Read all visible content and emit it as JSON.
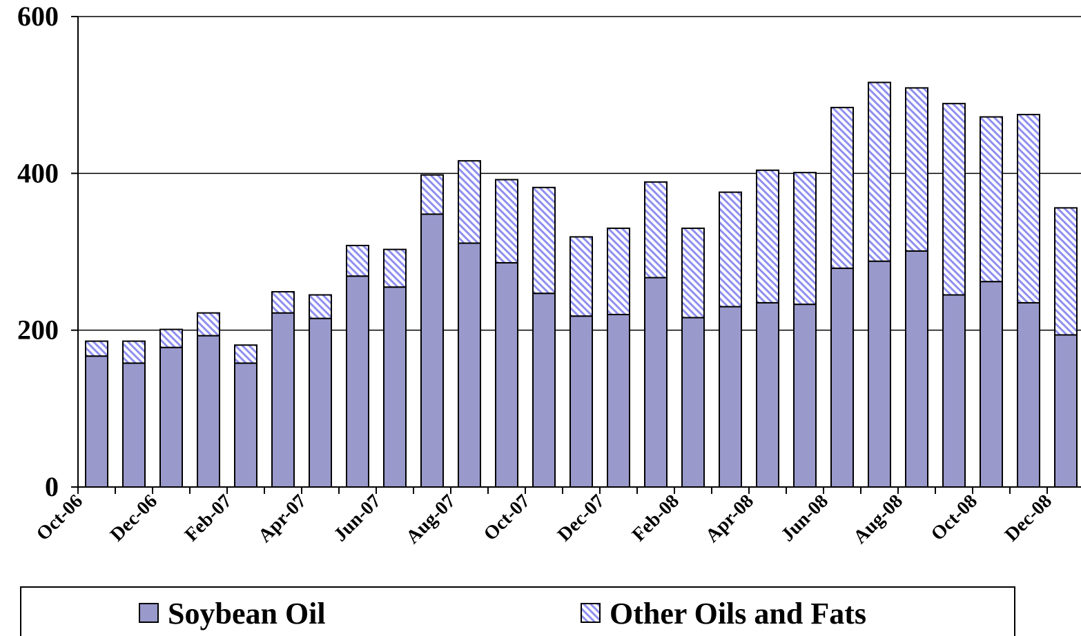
{
  "chart_data": {
    "type": "stacked-bar",
    "categories": [
      "Oct-06",
      null,
      "Dec-06",
      null,
      "Feb-07",
      null,
      "Apr-07",
      null,
      "Jun-07",
      null,
      "Aug-07",
      null,
      "Oct-07",
      null,
      "Dec-07",
      null,
      "Feb-08",
      null,
      "Apr-08",
      null,
      "Jun-08",
      null,
      "Aug-08",
      null,
      "Oct-08",
      null,
      "Dec-08"
    ],
    "series": [
      {
        "name": "Soybean Oil",
        "color": "#9999cc",
        "values": [
          167,
          158,
          178,
          193,
          158,
          222,
          215,
          269,
          255,
          348,
          311,
          286,
          247,
          218,
          220,
          267,
          216,
          230,
          235,
          233,
          279,
          288,
          301,
          245,
          262,
          235,
          194
        ]
      },
      {
        "name": "Other Oils and Fats",
        "color": "#8f8ff0",
        "pattern": "diagonal-hatch",
        "values": [
          19,
          28,
          23,
          29,
          23,
          27,
          30,
          39,
          48,
          50,
          105,
          106,
          135,
          101,
          110,
          122,
          114,
          146,
          169,
          168,
          205,
          228,
          208,
          244,
          210,
          240,
          162
        ]
      }
    ],
    "ylim": [
      0,
      600
    ],
    "yticks": [
      0,
      200,
      400,
      600
    ],
    "grid": true,
    "legend": "bottom"
  }
}
